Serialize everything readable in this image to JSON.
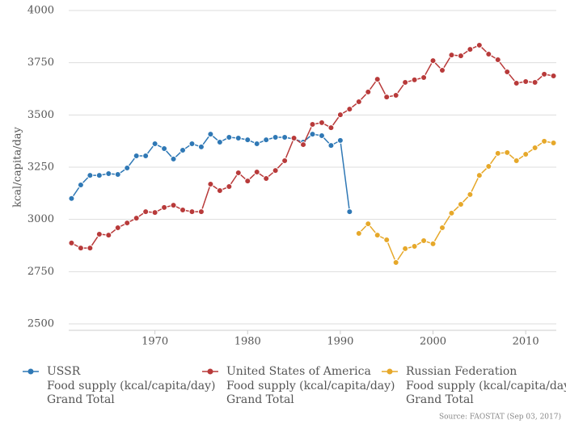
{
  "chart_data": {
    "type": "line",
    "y_label": "kcal/capita/day",
    "source": "Source: FAOSTAT (Sep 03, 2017)",
    "x": [
      1961,
      1962,
      1963,
      1964,
      1965,
      1966,
      1967,
      1968,
      1969,
      1970,
      1971,
      1972,
      1973,
      1974,
      1975,
      1976,
      1977,
      1978,
      1979,
      1980,
      1981,
      1982,
      1983,
      1984,
      1985,
      1986,
      1987,
      1988,
      1989,
      1990,
      1991,
      1992,
      1993,
      1994,
      1995,
      1996,
      1997,
      1998,
      1999,
      2000,
      2001,
      2002,
      2003,
      2004,
      2005,
      2006,
      2007,
      2008,
      2009,
      2010,
      2011,
      2012,
      2013
    ],
    "xlim": [
      1960.7,
      2013.3
    ],
    "xticks": [
      1970,
      1980,
      1990,
      2000,
      2010
    ],
    "ylim": [
      2500,
      4000
    ],
    "yticks": [
      2500,
      2750,
      3000,
      3250,
      3500,
      3750,
      4000
    ],
    "grid": true,
    "legend": "bottom",
    "series": [
      {
        "name": "USSR",
        "element": "Food supply (kcal/capita/day)",
        "item": "Grand Total",
        "color": "#2f78b5",
        "values": [
          3100,
          3165,
          3211,
          3211,
          3219,
          3215,
          3246,
          3304,
          3304,
          3362,
          3339,
          3289,
          3331,
          3362,
          3347,
          3408,
          3370,
          3393,
          3389,
          3381,
          3362,
          3381,
          3393,
          3393,
          3385,
          3370,
          3408,
          3401,
          3354,
          3378,
          3037,
          null,
          null,
          null,
          null,
          null,
          null,
          null,
          null,
          null,
          null,
          null,
          null,
          null,
          null,
          null,
          null,
          null,
          null,
          null,
          null,
          null,
          null
        ]
      },
      {
        "name": "United States of America",
        "element": "Food supply (kcal/capita/day)",
        "item": "Grand Total",
        "color": "#b83a3a",
        "values": [
          2887,
          2863,
          2863,
          2929,
          2925,
          2960,
          2983,
          3006,
          3037,
          3033,
          3057,
          3068,
          3045,
          3037,
          3037,
          3169,
          3138,
          3157,
          3223,
          3184,
          3227,
          3196,
          3234,
          3281,
          3389,
          3358,
          3455,
          3463,
          3439,
          3501,
          3528,
          3563,
          3610,
          3671,
          3586,
          3594,
          3656,
          3668,
          3679,
          3760,
          3714,
          3787,
          3783,
          3814,
          3834,
          3791,
          3764,
          3706,
          3652,
          3660,
          3656,
          3695,
          3687
        ]
      },
      {
        "name": "Russian Federation",
        "element": "Food supply (kcal/capita/day)",
        "item": "Grand Total",
        "color": "#e6a82a",
        "values": [
          null,
          null,
          null,
          null,
          null,
          null,
          null,
          null,
          null,
          null,
          null,
          null,
          null,
          null,
          null,
          null,
          null,
          null,
          null,
          null,
          null,
          null,
          null,
          null,
          null,
          null,
          null,
          null,
          null,
          null,
          null,
          2933,
          2979,
          2925,
          2902,
          2794,
          2860,
          2871,
          2898,
          2883,
          2960,
          3030,
          3072,
          3119,
          3211,
          3254,
          3316,
          3320,
          3281,
          3312,
          3343,
          3374,
          3366
        ]
      }
    ]
  }
}
